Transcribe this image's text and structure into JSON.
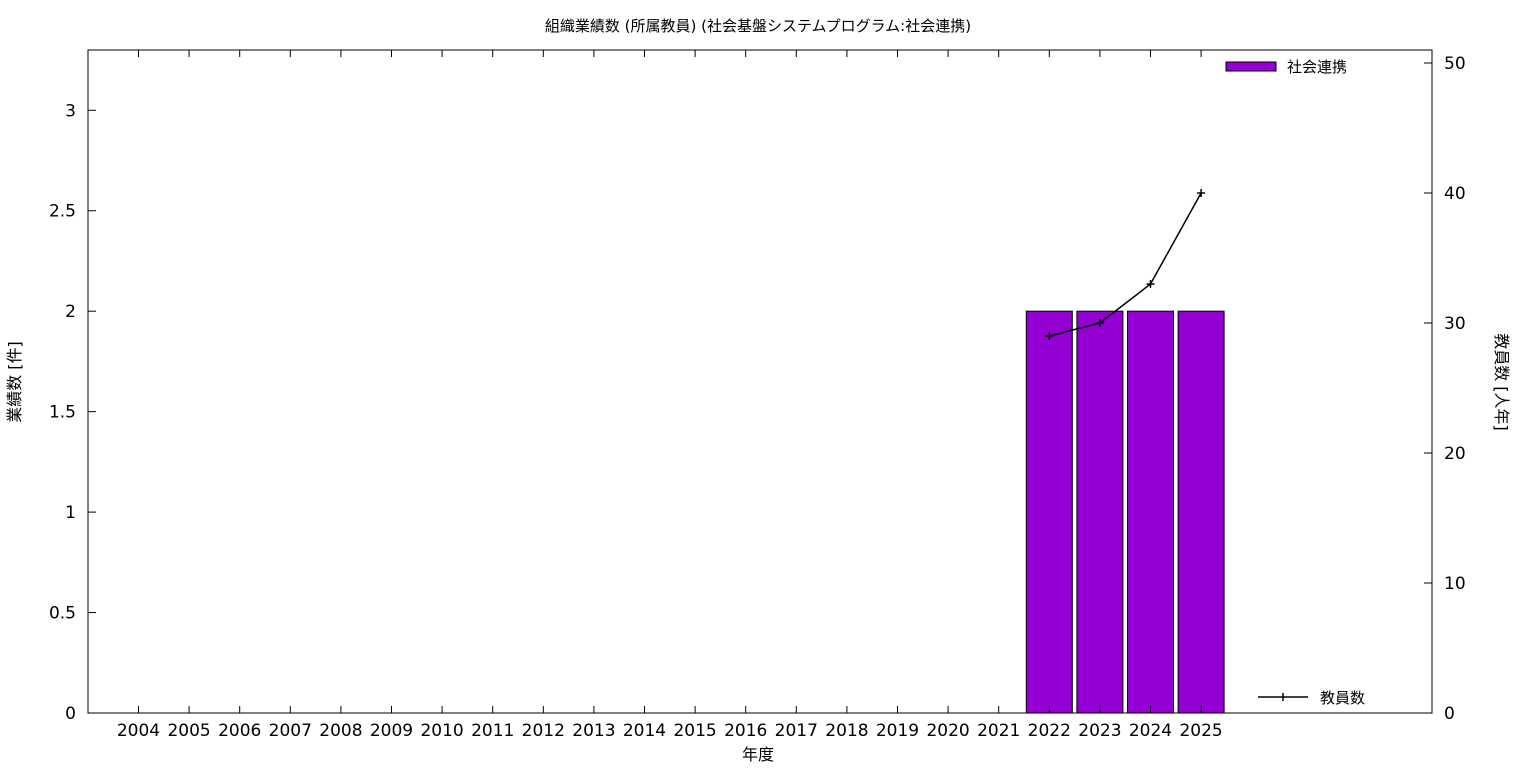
{
  "chart_data": {
    "type": "bar",
    "title": "組織業績数 (所属教員) (社会基盤システムプログラム:社会連携)",
    "xlabel": "年度",
    "ylabel": "業績数 [件]",
    "y2label": "教員数 [人年]",
    "categories": [
      "2004",
      "2005",
      "2006",
      "2007",
      "2008",
      "2009",
      "2010",
      "2011",
      "2012",
      "2013",
      "2014",
      "2015",
      "2016",
      "2017",
      "2018",
      "2019",
      "2020",
      "2021",
      "2022",
      "2023",
      "2024",
      "2025"
    ],
    "ylim": [
      0,
      3.3
    ],
    "yticks": [
      "0",
      "0.5",
      "1",
      "1.5",
      "2",
      "2.5",
      "3"
    ],
    "y2lim": [
      0,
      51
    ],
    "y2ticks": [
      "0",
      "10",
      "20",
      "30",
      "40",
      "50"
    ],
    "grid": false,
    "series": [
      {
        "name": "社会連携",
        "kind": "bar",
        "axis": "left",
        "color": "#9400d3",
        "values": [
          null,
          null,
          null,
          null,
          null,
          null,
          null,
          null,
          null,
          null,
          null,
          null,
          null,
          null,
          null,
          null,
          null,
          null,
          2,
          2,
          2,
          2
        ]
      },
      {
        "name": "教員数",
        "kind": "line",
        "axis": "right",
        "color": "#000000",
        "values": [
          null,
          null,
          null,
          null,
          null,
          null,
          null,
          null,
          null,
          null,
          null,
          null,
          null,
          null,
          null,
          null,
          null,
          null,
          29,
          30,
          33,
          40
        ]
      }
    ],
    "legend": {
      "bars": "top-right",
      "line": "bottom-right"
    }
  }
}
